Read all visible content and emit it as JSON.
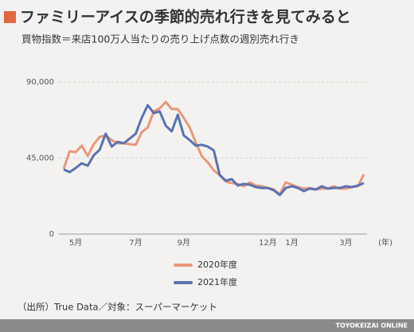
{
  "header": {
    "title": "ファミリーアイスの季節的売れ行きを見てみると",
    "subtitle": "買物指数＝来店100万人当たりの売り上げ点数の週別売れ行き"
  },
  "chart_data": {
    "type": "line",
    "categories": [
      null,
      null,
      "5月",
      null,
      null,
      null,
      null,
      null,
      null,
      null,
      null,
      null,
      "7月",
      null,
      null,
      null,
      null,
      null,
      null,
      null,
      "9月",
      null,
      null,
      null,
      null,
      null,
      null,
      null,
      null,
      null,
      null,
      null,
      null,
      null,
      "12月",
      null,
      null,
      null,
      "1月",
      null,
      null,
      null,
      null,
      null,
      null,
      null,
      null,
      "3月",
      null,
      null,
      null
    ],
    "x_label": "(年)",
    "series": [
      {
        "name": "2020年度",
        "color": "#e8977a",
        "values": [
          38600,
          49000,
          48500,
          52300,
          46200,
          53200,
          57500,
          58400,
          55600,
          53700,
          53700,
          53200,
          52800,
          60300,
          63100,
          72600,
          74400,
          78200,
          74000,
          74000,
          68800,
          63100,
          54200,
          46200,
          42400,
          37700,
          34900,
          31100,
          30200,
          29700,
          28300,
          30600,
          28700,
          28300,
          27300,
          26400,
          23600,
          30600,
          29200,
          27800,
          26900,
          27300,
          26400,
          26900,
          26900,
          28300,
          26900,
          26900,
          27800,
          28300,
          35300
        ]
      },
      {
        "name": "2021年度",
        "color": "#5a72b0",
        "values": [
          38200,
          36700,
          39100,
          41900,
          40500,
          46600,
          49900,
          59400,
          51800,
          54600,
          53700,
          56500,
          59400,
          68800,
          76300,
          71600,
          72600,
          64200,
          60800,
          70600,
          58400,
          55600,
          52300,
          52800,
          51800,
          49500,
          34900,
          31600,
          32500,
          28700,
          29700,
          29200,
          27800,
          27300,
          27300,
          25900,
          23100,
          27300,
          28300,
          27300,
          25400,
          26900,
          26400,
          28300,
          26900,
          27300,
          27300,
          28300,
          27800,
          28700,
          30200
        ]
      }
    ],
    "ylim": [
      0,
      90000
    ],
    "yticks": [
      0,
      {
        "value": 45000,
        "label": "45,000"
      },
      {
        "value": 90000,
        "label": "90,000"
      }
    ],
    "grid": true
  },
  "source": "（出所）True Data／対象：スーパーマーケット",
  "footer": "TOYOKEIZAI ONLINE"
}
